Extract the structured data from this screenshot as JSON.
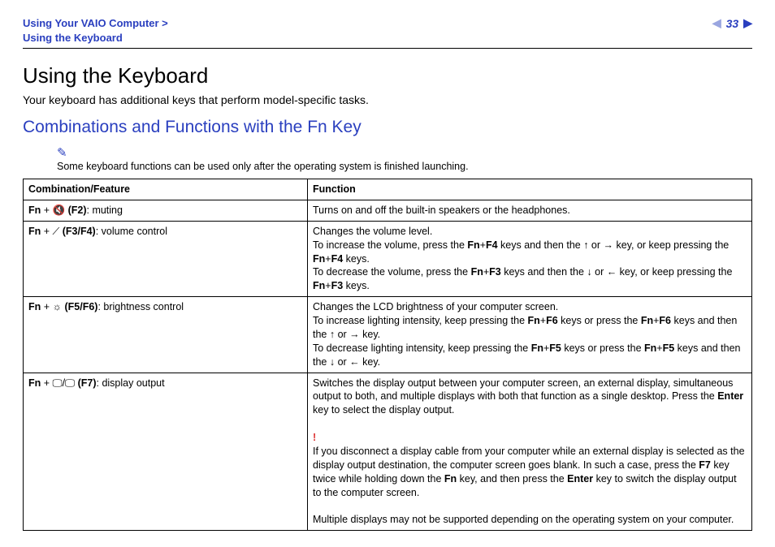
{
  "header": {
    "breadcrumb_line1": "Using Your VAIO Computer >",
    "breadcrumb_line2": "Using the Keyboard",
    "page_number": "33"
  },
  "title": "Using the Keyboard",
  "intro": "Your keyboard has additional keys that perform model-specific tasks.",
  "subheading": "Combinations and Functions with the Fn Key",
  "note": "Some keyboard functions can be used only after the operating system is finished launching.",
  "table": {
    "head_col1": "Combination/Feature",
    "head_col2": "Function",
    "rows": {
      "r1": {
        "combo_html": "<b>Fn</b> + 🔇 <b>(F2)</b>: muting",
        "func_html": "Turns on and off the built-in speakers or the headphones."
      },
      "r2": {
        "combo_html": "<b>Fn</b> + ⟋ <b>(F3/F4)</b>: volume control",
        "func_html": "Changes the volume level.<br>To increase the volume, press the <b>Fn</b>+<b>F4</b> keys and then the <span class='arrow'>↑</span> or <span class='arrow'>→</span> key, or keep pressing the <b>Fn</b>+<b>F4</b> keys.<br>To decrease the volume, press the <b>Fn</b>+<b>F3</b> keys and then the <span class='arrow'>↓</span> or <span class='arrow'>←</span> key, or keep pressing the <b>Fn</b>+<b>F3</b> keys."
      },
      "r3": {
        "combo_html": "<b>Fn</b> + ☼ <b>(F5/F6)</b>: brightness control",
        "func_html": "Changes the LCD brightness of your computer screen.<br>To increase lighting intensity, keep pressing the <b>Fn</b>+<b>F6</b> keys or press the <b>Fn</b>+<b>F6</b> keys and then the <span class='arrow'>↑</span> or <span class='arrow'>→</span> key.<br>To decrease lighting intensity, keep pressing the <b>Fn</b>+<b>F5</b> keys or press the <b>Fn</b>+<b>F5</b> keys and then the <span class='arrow'>↓</span> or <span class='arrow'>←</span> key."
      },
      "r4": {
        "combo_html": "<b>Fn</b> + 🖵/🖵 <b>(F7)</b>: display output",
        "func_html": "Switches the display output between your computer screen, an external display, simultaneous output to both, and multiple displays with both that function as a single desktop. Press the <b>Enter</b> key to select the display output.<br><br><span class='warn'>!</span><br>If you disconnect a display cable from your computer while an external display is selected as the display output destination, the computer screen goes blank. In such a case, press the <b>F7</b> key twice while holding down the <b>Fn</b> key, and then press the <b>Enter</b> key to switch the display output to the computer screen.<br><br>Multiple displays may not be supported depending on the operating system on your computer."
      }
    }
  }
}
